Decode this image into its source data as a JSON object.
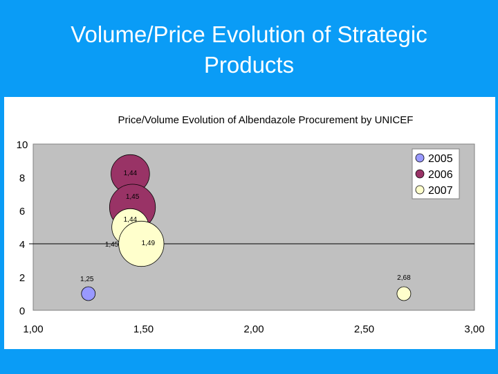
{
  "slide": {
    "title_line1": "Volume/Price Evolution of Strategic",
    "title_line2": "Products"
  },
  "chart_data": {
    "type": "bubble",
    "title": "Price/Volume Evolution of Albendazole Procurement by UNICEF",
    "xlabel": "",
    "ylabel": "",
    "xlim": [
      1.0,
      3.0
    ],
    "ylim": [
      0,
      10
    ],
    "x_ticks": [
      "1,00",
      "1,50",
      "2,00",
      "2,50",
      "3,00"
    ],
    "y_ticks": [
      "0",
      "2",
      "4",
      "6",
      "8",
      "10"
    ],
    "horizontal_line_y": 4,
    "plot_background": "#c0c0c0",
    "legend_position": "top-right",
    "series": [
      {
        "name": "2005",
        "color": "#9999ff",
        "points": [
          {
            "x": 1.25,
            "y": 1.0,
            "size": 1.0,
            "label": "1,25"
          },
          {
            "x": 1.45,
            "y": 4.0,
            "size": 1.0,
            "label": "1,45"
          }
        ]
      },
      {
        "name": "2006",
        "color": "#993366",
        "points": [
          {
            "x": 1.44,
            "y": 8.2,
            "size": 2.4,
            "label": "1,44"
          },
          {
            "x": 1.45,
            "y": 6.2,
            "size": 3.4,
            "label": "1,45"
          }
        ]
      },
      {
        "name": "2007",
        "color": "#ffffcc",
        "points": [
          {
            "x": 1.44,
            "y": 5.0,
            "size": 2.2,
            "label": "1,44"
          },
          {
            "x": 1.49,
            "y": 4.0,
            "size": 3.3,
            "label": "1,49"
          },
          {
            "x": 2.68,
            "y": 1.0,
            "size": 1.0,
            "label": "2,68"
          }
        ]
      }
    ]
  }
}
